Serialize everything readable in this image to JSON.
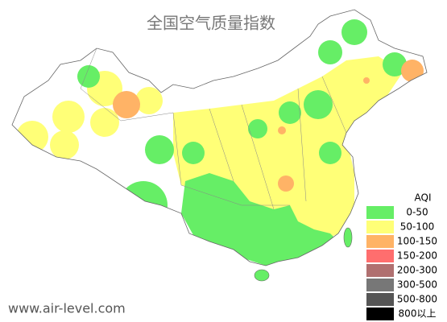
{
  "title": "全国空气质量指数",
  "watermark": "www.air-level.com",
  "legend": {
    "title": "AQI",
    "items": [
      {
        "label": "0-50",
        "color": "#66ee66"
      },
      {
        "label": "50-100",
        "color": "#ffff77"
      },
      {
        "label": "100-150",
        "color": "#ffb366"
      },
      {
        "label": "150-200",
        "color": "#ff6e6e"
      },
      {
        "label": "200-300",
        "color": "#b07070"
      },
      {
        "label": "300-500",
        "color": "#777777"
      },
      {
        "label": "500-800",
        "color": "#555555"
      },
      {
        "label": "800以上",
        "color": "#000000"
      }
    ]
  }
}
